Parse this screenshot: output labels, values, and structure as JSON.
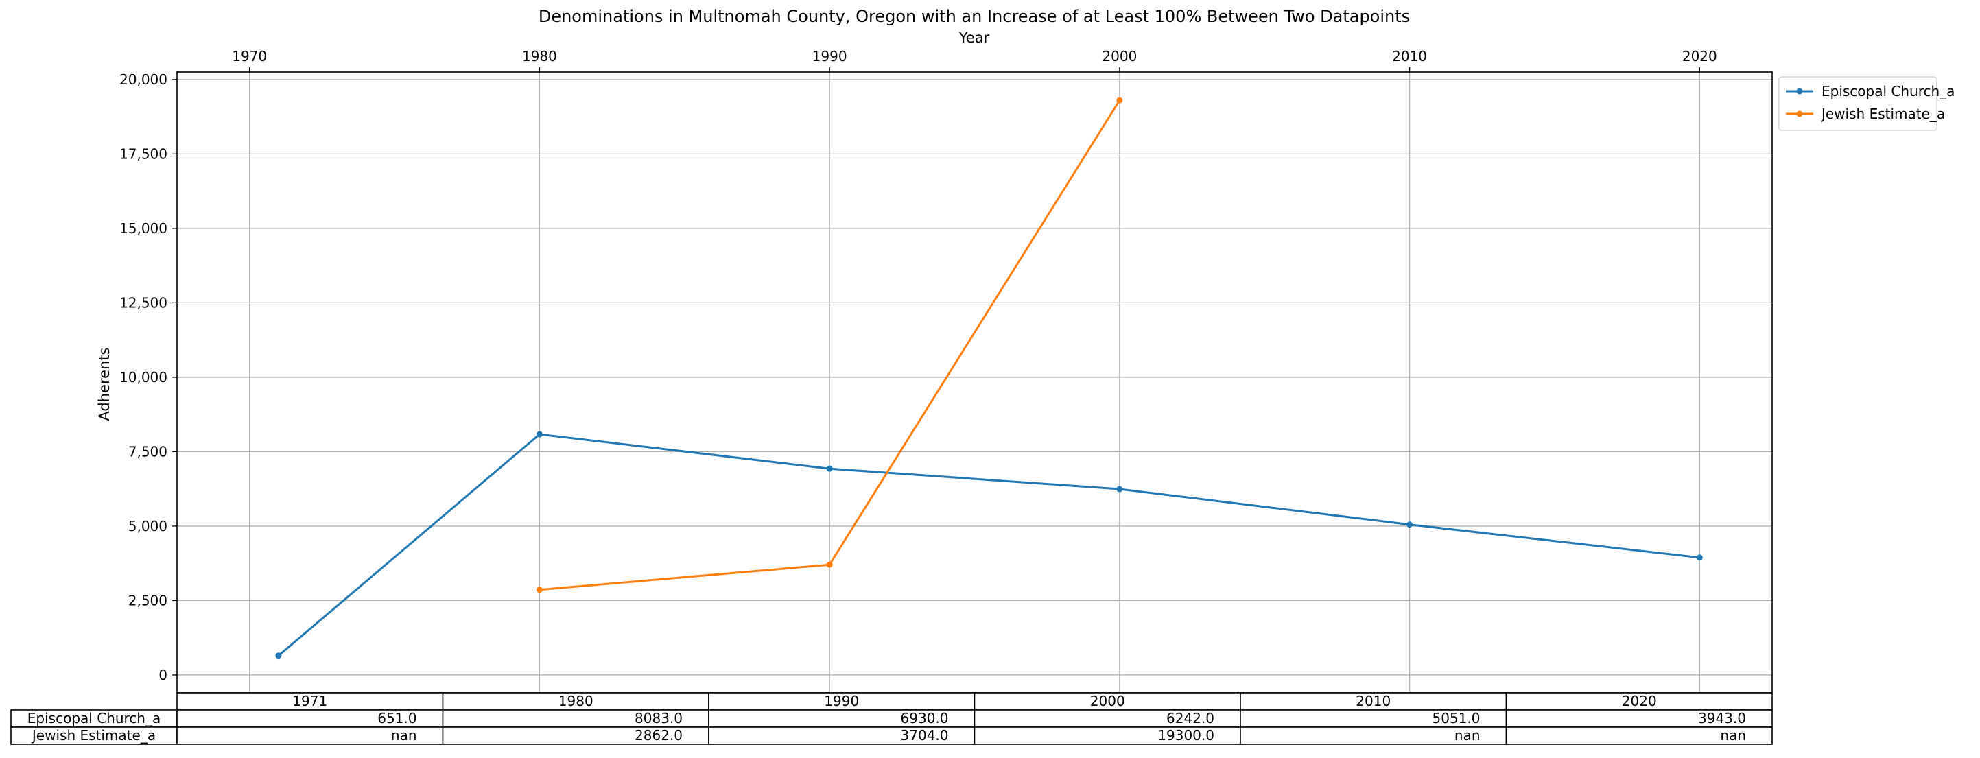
{
  "chart_data": {
    "type": "line",
    "title": "Denominations in Multnomah County, Oregon with an Increase of at Least 100% Between Two Datapoints",
    "xlabel": "Year",
    "ylabel": "Adherents",
    "xlim": [
      1967.5,
      2022.5
    ],
    "ylim": [
      -600,
      20250
    ],
    "x_ticks": [
      1970,
      1980,
      1990,
      2000,
      2010,
      2020
    ],
    "y_ticks": [
      0,
      2500,
      5000,
      7500,
      10000,
      12500,
      15000,
      17500,
      20000
    ],
    "y_tick_labels": [
      "0",
      "2,500",
      "5,000",
      "7,500",
      "10,000",
      "12,500",
      "15,000",
      "17,500",
      "20,000"
    ],
    "x_axis_position": "top",
    "grid": true,
    "legend": "outside-top-right",
    "series": [
      {
        "name": "Episcopal Church_a",
        "color": "#1f77b4",
        "x": [
          1971,
          1980,
          1990,
          2000,
          2010,
          2020
        ],
        "values": [
          651,
          8083,
          6930,
          6242,
          5051,
          3943
        ]
      },
      {
        "name": "Jewish Estimate_a",
        "color": "#ff7f0e",
        "x": [
          1980,
          1990,
          2000
        ],
        "values": [
          2862,
          3704,
          19300
        ]
      }
    ],
    "table": {
      "columns": [
        "1971",
        "1980",
        "1990",
        "2000",
        "2010",
        "2020"
      ],
      "rows": [
        {
          "label": "Episcopal Church_a",
          "cells": [
            "651.0",
            "8083.0",
            "6930.0",
            "6242.0",
            "5051.0",
            "3943.0"
          ]
        },
        {
          "label": "Jewish Estimate_a",
          "cells": [
            "nan",
            "2862.0",
            "3704.0",
            "19300.0",
            "nan",
            "nan"
          ]
        }
      ]
    }
  }
}
